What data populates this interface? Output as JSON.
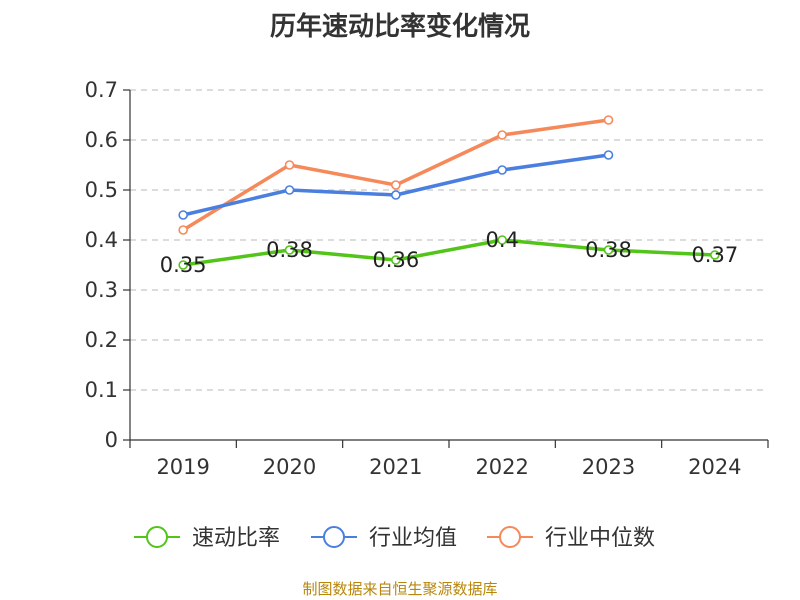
{
  "chart_data": {
    "type": "line",
    "title": "历年速动比率变化情况",
    "categories": [
      "2019",
      "2020",
      "2021",
      "2022",
      "2023",
      "2024"
    ],
    "ylim": [
      0,
      0.7
    ],
    "yticks": [
      "0",
      "0.1",
      "0.2",
      "0.3",
      "0.4",
      "0.5",
      "0.6",
      "0.7"
    ],
    "grid": true,
    "legend_position": "bottom",
    "series": [
      {
        "name": "速动比率",
        "color": "#52c41a",
        "values": [
          0.35,
          0.38,
          0.36,
          0.4,
          0.38,
          0.37
        ],
        "labels": [
          "0.35",
          "0.38",
          "0.36",
          "0.4",
          "0.38",
          "0.37"
        ]
      },
      {
        "name": "行业均值",
        "color": "#4a7fe0",
        "values": [
          0.45,
          0.5,
          0.49,
          0.54,
          0.57,
          null
        ]
      },
      {
        "name": "行业中位数",
        "color": "#f5895a",
        "values": [
          0.42,
          0.55,
          0.51,
          0.61,
          0.64,
          null
        ]
      }
    ]
  },
  "footer": {
    "source": "制图数据来自恒生聚源数据库"
  }
}
